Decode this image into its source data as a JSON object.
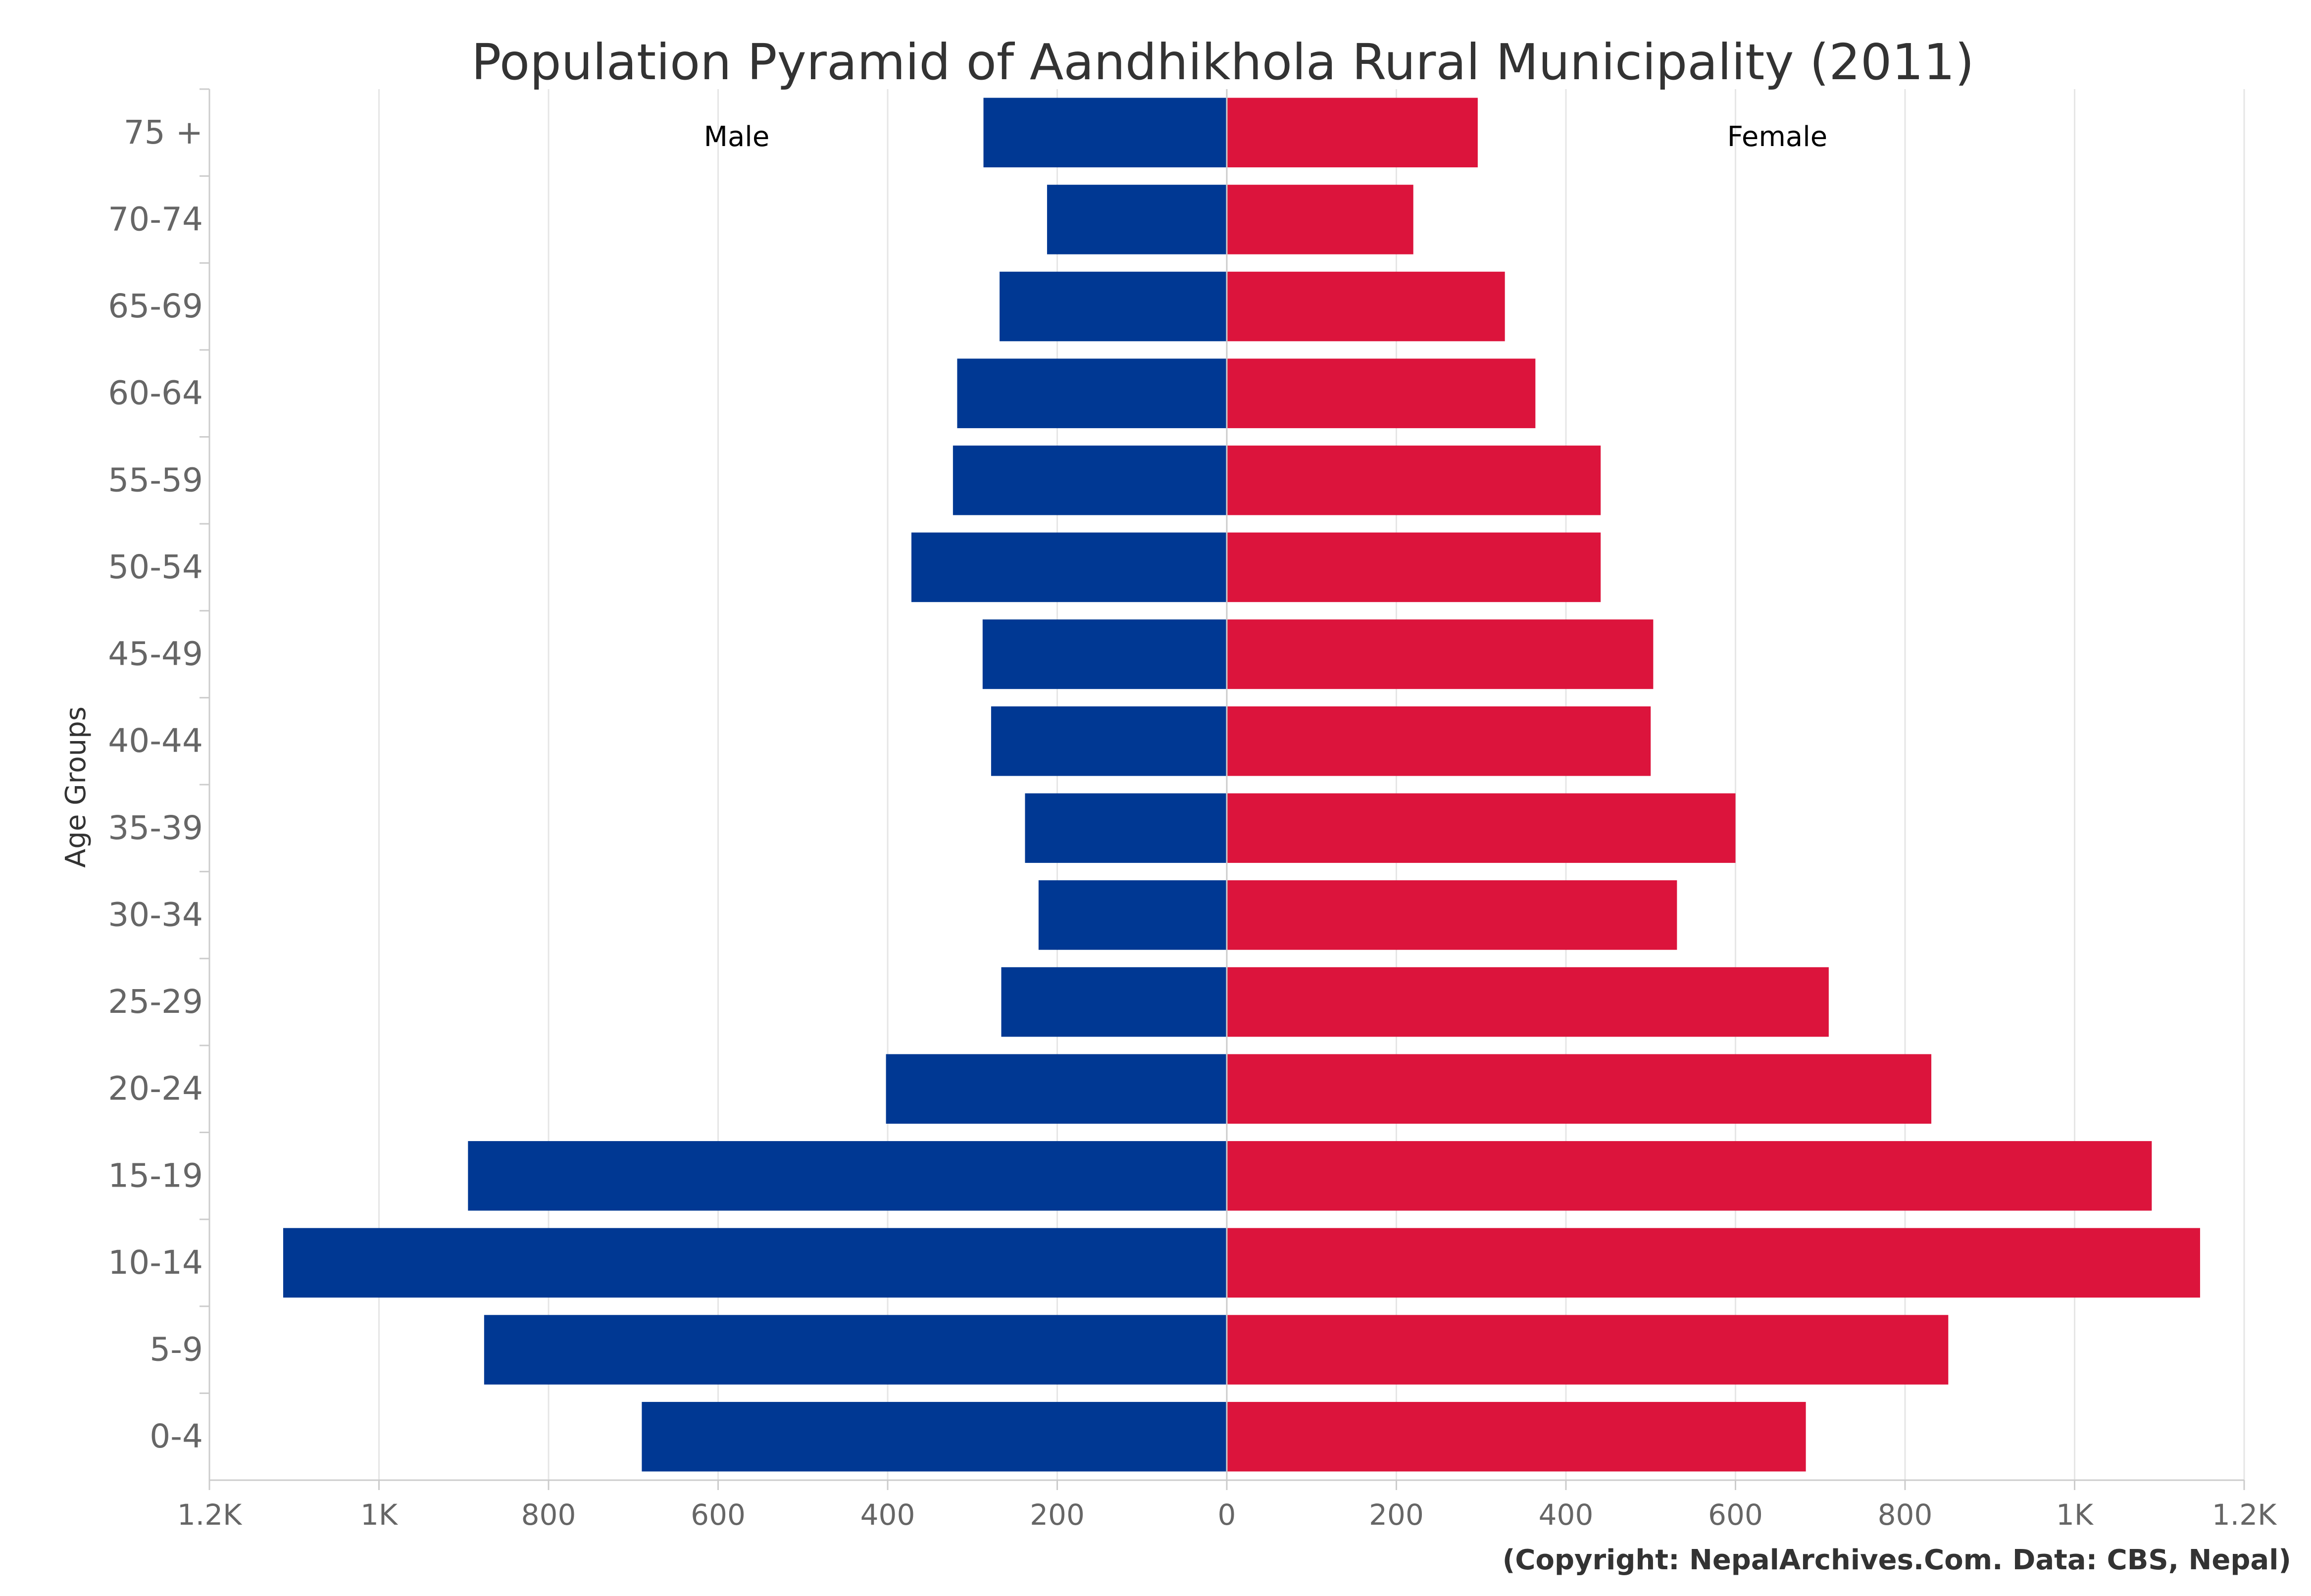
{
  "chart_data": {
    "type": "bar",
    "orientation": "horizontal",
    "title": "Population Pyramid of Aandhikhola Rural Municipality (2011)",
    "ylabel": "Age Groups",
    "categories": [
      "75 +",
      "70-74",
      "65-69",
      "60-64",
      "55-59",
      "50-54",
      "45-49",
      "40-44",
      "35-39",
      "30-34",
      "25-29",
      "20-24",
      "15-19",
      "10-14",
      "5-9",
      "0-4"
    ],
    "series": [
      {
        "name": "Male",
        "color": "#003893",
        "values": [
          287,
          212,
          268,
          318,
          323,
          372,
          288,
          278,
          238,
          222,
          266,
          402,
          895,
          1113,
          876,
          690
        ]
      },
      {
        "name": "Female",
        "color": "#DC143C",
        "values": [
          296,
          220,
          328,
          364,
          441,
          441,
          503,
          500,
          600,
          531,
          710,
          831,
          1091,
          1148,
          851,
          683
        ]
      }
    ],
    "xlim": [
      -1200,
      1200
    ],
    "xticks": [
      {
        "value": -1200,
        "label": "1.2K"
      },
      {
        "value": -1000,
        "label": "1K"
      },
      {
        "value": -800,
        "label": "800"
      },
      {
        "value": -600,
        "label": "600"
      },
      {
        "value": -400,
        "label": "400"
      },
      {
        "value": -200,
        "label": "200"
      },
      {
        "value": 0,
        "label": "0"
      },
      {
        "value": 200,
        "label": "200"
      },
      {
        "value": 400,
        "label": "400"
      },
      {
        "value": 600,
        "label": "600"
      },
      {
        "value": 800,
        "label": "800"
      },
      {
        "value": 1000,
        "label": "1K"
      },
      {
        "value": 1200,
        "label": "1.2K"
      }
    ],
    "grid": true,
    "credit": "(Copyright: NepalArchives.Com. Data: CBS, Nepal)"
  }
}
